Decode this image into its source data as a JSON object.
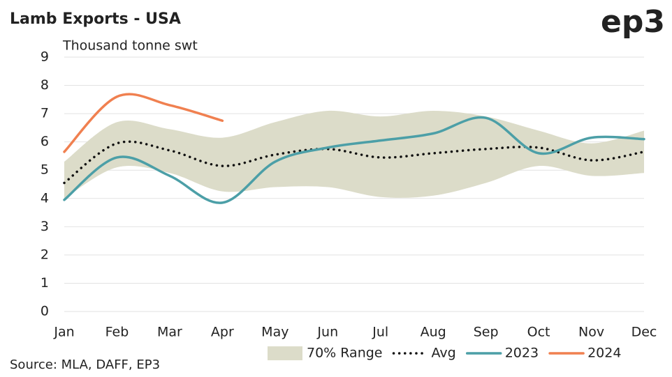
{
  "chart_data": {
    "type": "line",
    "title": "Lamb Exports - USA",
    "logo": "ep3",
    "y_label": "Thousand tonne swt",
    "source": "Source: MLA, DAFF, EP3",
    "categories": [
      "Jan",
      "Feb",
      "Mar",
      "Apr",
      "May",
      "Jun",
      "Jul",
      "Aug",
      "Sep",
      "Oct",
      "Nov",
      "Dec"
    ],
    "ylim": [
      0,
      9
    ],
    "yticks": [
      0,
      1,
      2,
      3,
      4,
      5,
      6,
      7,
      8,
      9
    ],
    "grid": true,
    "legend": "bottom",
    "series": [
      {
        "name": "70% Range",
        "color": "#dcdcc9",
        "style": "band",
        "lower": [
          4.0,
          5.1,
          4.9,
          4.25,
          4.4,
          4.4,
          4.05,
          4.1,
          4.55,
          5.15,
          4.8,
          4.9
        ],
        "upper": [
          5.3,
          6.7,
          6.45,
          6.15,
          6.7,
          7.1,
          6.9,
          7.1,
          6.9,
          6.4,
          5.95,
          6.4
        ]
      },
      {
        "name": "Avg",
        "color": "#111111",
        "style": "dotted",
        "values": [
          4.55,
          5.95,
          5.7,
          5.15,
          5.55,
          5.75,
          5.45,
          5.6,
          5.75,
          5.8,
          5.35,
          5.65
        ]
      },
      {
        "name": "2023",
        "color": "#4c9fa7",
        "style": "solid",
        "values": [
          3.95,
          5.45,
          4.8,
          3.85,
          5.3,
          5.8,
          6.05,
          6.3,
          6.85,
          5.6,
          6.15,
          6.1
        ]
      },
      {
        "name": "2024",
        "color": "#f08050",
        "style": "solid",
        "values": [
          5.65,
          7.6,
          7.3,
          6.75,
          null,
          null,
          null,
          null,
          null,
          null,
          null,
          null
        ]
      }
    ]
  }
}
